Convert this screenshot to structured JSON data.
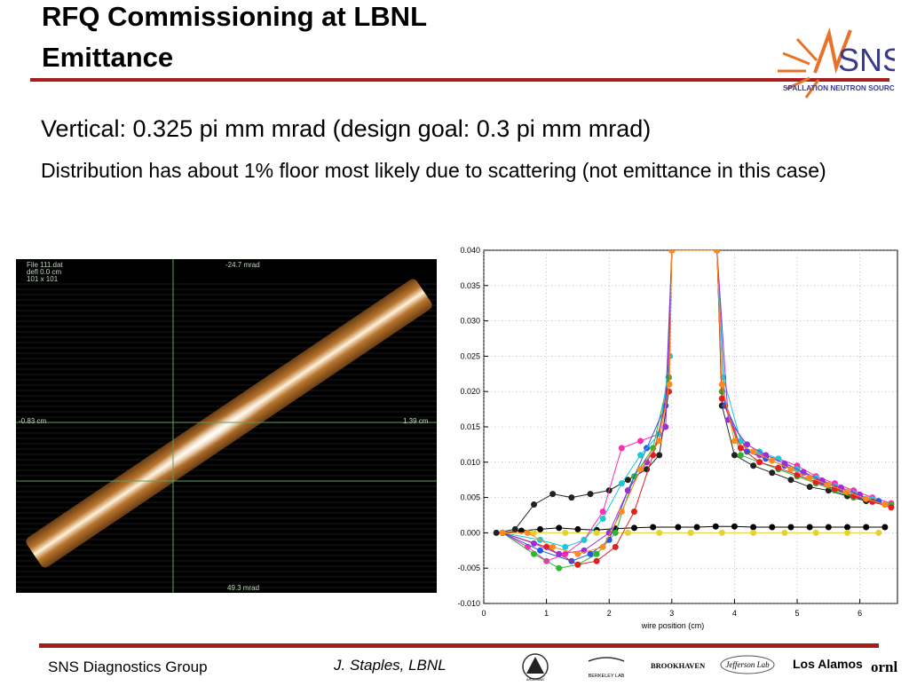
{
  "title": {
    "line1": "RFQ Commissioning at LBNL",
    "line2": "Emittance"
  },
  "logo": {
    "main_text": "SNS",
    "sub_text": "SPALLATION NEUTRON SOURCE",
    "accent": "#e8722a",
    "text_color": "#3a3a8c"
  },
  "bullets": [
    "Vertical: 0.325 pi mm mrad (design goal: 0.3 pi mm mrad)",
    "Distribution has about 1% floor most likely due to scattering (not emittance in this case)"
  ],
  "emittance_scan": {
    "info_line1": "File 111.dat",
    "info_line2": "defl 0.0 cm",
    "info_line3": "101 x 101",
    "top_label": "-24.7 mrad",
    "bottom_label": "49.3 mrad",
    "left_label": "-0.83 cm",
    "right_label": "1.39 cm",
    "colors": {
      "background": "#000000",
      "beam_edge": "#7a4a1c",
      "beam_core": "#fff3dc",
      "grid": "#5fa05f"
    }
  },
  "chart_data": {
    "type": "scatter",
    "title": "",
    "xlabel": "wire position (cm)",
    "ylabel": "",
    "xlim": [
      0,
      6.6
    ],
    "ylim": [
      -0.01,
      0.04
    ],
    "x_ticks": [
      "0",
      "1",
      "2",
      "3",
      "4",
      "5",
      "6"
    ],
    "y_ticks": [
      "-0.010",
      "-0.005",
      "0.000",
      "0.005",
      "0.010",
      "0.015",
      "0.020",
      "0.025",
      "0.030",
      "0.035",
      "0.040"
    ],
    "grid": true,
    "legend": "none",
    "series": [
      {
        "color": "#000000",
        "x": [
          0.3,
          0.6,
          0.9,
          1.2,
          1.5,
          1.8,
          2.1,
          2.4,
          2.7,
          3.1,
          3.4,
          3.7,
          4.0,
          4.3,
          4.6,
          4.9,
          5.2,
          5.5,
          5.8,
          6.1,
          6.4
        ],
        "y": [
          0.0,
          0.0003,
          0.0005,
          0.0007,
          0.0005,
          0.0004,
          0.0006,
          0.0007,
          0.0008,
          0.0008,
          0.0008,
          0.0009,
          0.0009,
          0.0008,
          0.0008,
          0.0008,
          0.0008,
          0.0008,
          0.0008,
          0.0008,
          0.0008
        ]
      },
      {
        "color": "#e6d22e",
        "x": [
          0.3,
          0.8,
          1.3,
          1.8,
          2.3,
          2.8,
          3.3,
          3.8,
          4.3,
          4.8,
          5.3,
          5.8,
          6.3
        ],
        "y": [
          0.0,
          0.0,
          0.0,
          0.0,
          0.0,
          0.0,
          0.0,
          0.0,
          0.0,
          0.0,
          0.0,
          0.0,
          0.0
        ]
      },
      {
        "color": "#222222",
        "x": [
          0.2,
          0.5,
          0.8,
          1.1,
          1.4,
          1.7,
          2.0,
          2.3,
          2.6,
          2.8,
          2.95,
          3.0,
          3.72,
          3.8,
          4.0,
          4.3,
          4.6,
          4.9,
          5.2,
          5.5,
          5.8,
          6.1,
          6.4
        ],
        "y": [
          0.0,
          0.0005,
          0.004,
          0.0055,
          0.005,
          0.0055,
          0.006,
          0.0075,
          0.009,
          0.011,
          0.02,
          0.04,
          0.04,
          0.018,
          0.011,
          0.0095,
          0.0085,
          0.0075,
          0.0065,
          0.006,
          0.0052,
          0.0045,
          0.004
        ]
      },
      {
        "color": "#ff2db4",
        "x": [
          0.3,
          0.7,
          1.0,
          1.3,
          1.6,
          1.9,
          2.2,
          2.5,
          2.8,
          2.95,
          3.0,
          3.72,
          3.8,
          4.1,
          4.4,
          4.7,
          5.0,
          5.3,
          5.6,
          5.9,
          6.2,
          6.5
        ],
        "y": [
          0.0,
          -0.002,
          -0.004,
          -0.003,
          -0.001,
          0.003,
          0.012,
          0.013,
          0.014,
          0.022,
          0.04,
          0.04,
          0.02,
          0.012,
          0.011,
          0.0105,
          0.0095,
          0.008,
          0.007,
          0.006,
          0.005,
          0.0042
        ]
      },
      {
        "color": "#2fb52f",
        "x": [
          0.3,
          0.8,
          1.2,
          1.5,
          1.8,
          2.1,
          2.4,
          2.7,
          2.95,
          3.0,
          3.72,
          3.8,
          4.1,
          4.4,
          4.7,
          5.0,
          5.3,
          5.6,
          5.9,
          6.2,
          6.5
        ],
        "y": [
          0.0,
          -0.003,
          -0.005,
          -0.0045,
          -0.003,
          0.0,
          0.008,
          0.012,
          0.022,
          0.04,
          0.04,
          0.02,
          0.011,
          0.01,
          0.009,
          0.008,
          0.007,
          0.006,
          0.005,
          0.0045,
          0.004
        ]
      },
      {
        "color": "#2a56e0",
        "x": [
          0.3,
          0.9,
          1.4,
          1.7,
          2.0,
          2.3,
          2.6,
          2.9,
          3.0,
          3.72,
          3.85,
          4.2,
          4.5,
          4.8,
          5.1,
          5.4,
          5.7,
          6.0,
          6.3
        ],
        "y": [
          0.0,
          -0.0025,
          -0.004,
          -0.003,
          -0.001,
          0.006,
          0.012,
          0.018,
          0.04,
          0.04,
          0.018,
          0.0115,
          0.0105,
          0.0095,
          0.0085,
          0.0072,
          0.0062,
          0.0052,
          0.0045
        ]
      },
      {
        "color": "#19c9d6",
        "x": [
          0.3,
          0.9,
          1.3,
          1.6,
          1.9,
          2.2,
          2.5,
          2.8,
          2.97,
          3.0,
          3.72,
          3.82,
          4.1,
          4.4,
          4.7,
          5.0,
          5.3,
          5.6,
          5.9,
          6.2
        ],
        "y": [
          0.0,
          -0.001,
          -0.002,
          -0.001,
          0.002,
          0.007,
          0.011,
          0.014,
          0.025,
          0.04,
          0.04,
          0.022,
          0.013,
          0.0115,
          0.0105,
          0.009,
          0.0078,
          0.0066,
          0.0056,
          0.0048
        ]
      },
      {
        "color": "#e02020",
        "x": [
          0.3,
          1.0,
          1.5,
          1.8,
          2.1,
          2.4,
          2.7,
          2.95,
          3.0,
          3.72,
          3.8,
          4.1,
          4.4,
          4.7,
          5.0,
          5.3,
          5.6,
          5.9,
          6.2,
          6.5
        ],
        "y": [
          0.0,
          -0.002,
          -0.0045,
          -0.004,
          -0.002,
          0.003,
          0.011,
          0.02,
          0.04,
          0.04,
          0.019,
          0.012,
          0.01,
          0.0092,
          0.0082,
          0.0072,
          0.0062,
          0.0052,
          0.0044,
          0.0036
        ]
      },
      {
        "color": "#9b2fd6",
        "x": [
          0.3,
          0.8,
          1.2,
          1.6,
          2.0,
          2.3,
          2.6,
          2.9,
          3.0,
          3.72,
          3.9,
          4.2,
          4.5,
          4.8,
          5.1,
          5.4,
          5.7,
          6.0
        ],
        "y": [
          0.0,
          -0.0015,
          -0.003,
          -0.0025,
          0.0,
          0.006,
          0.01,
          0.015,
          0.04,
          0.04,
          0.016,
          0.0125,
          0.011,
          0.0098,
          0.0086,
          0.0074,
          0.0064,
          0.0054
        ]
      },
      {
        "color": "#ff8a1e",
        "x": [
          0.3,
          0.7,
          1.1,
          1.5,
          1.9,
          2.2,
          2.5,
          2.8,
          2.96,
          3.0,
          3.72,
          3.8,
          4.0,
          4.3,
          4.6,
          4.9,
          5.2,
          5.5,
          5.8,
          6.1,
          6.4
        ],
        "y": [
          0.0,
          0.0,
          -0.002,
          -0.003,
          -0.002,
          0.003,
          0.009,
          0.013,
          0.021,
          0.04,
          0.04,
          0.021,
          0.013,
          0.0115,
          0.0102,
          0.009,
          0.0078,
          0.0068,
          0.0058,
          0.0048,
          0.004
        ]
      }
    ]
  },
  "footer": {
    "group": "SNS Diagnostics Group",
    "author": "J. Staples, LBNL"
  },
  "partners": [
    "ARGONNE",
    "BERKELEY LAB",
    "BROOKHAVEN",
    "Jefferson Lab",
    "Los Alamos",
    "ornl"
  ]
}
